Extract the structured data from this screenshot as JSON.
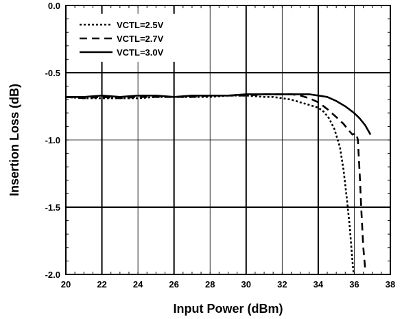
{
  "chart_data": {
    "type": "line",
    "title": "",
    "xlabel": "Input Power  (dBm)",
    "ylabel": "Insertion Loss  (dB)",
    "xlim": [
      20,
      38
    ],
    "ylim": [
      -2.0,
      0.0
    ],
    "xticks": [
      20,
      22,
      24,
      26,
      28,
      30,
      32,
      34,
      36,
      38
    ],
    "xtick_labels": [
      "20",
      "22",
      "24",
      "26",
      "28",
      "30",
      "32",
      "34",
      "36",
      "38"
    ],
    "yticks": [
      0.0,
      -0.5,
      -1.0,
      -1.5,
      -2.0
    ],
    "ytick_labels": [
      "0.0",
      "-0.5",
      "-1.0",
      "-1.5",
      "-2.0"
    ],
    "grid": true,
    "legend_position": "top-left",
    "series": [
      {
        "name": "VCTL=2.5V",
        "style": "dotted",
        "x": [
          20,
          21,
          22,
          23,
          24,
          25,
          26,
          27,
          28,
          29,
          30,
          31,
          31.5,
          32,
          32.5,
          33,
          33.5,
          34,
          34.3,
          34.6,
          34.9,
          35.2,
          35.4,
          35.6,
          35.75,
          35.85,
          35.92,
          35.97
        ],
        "y": [
          -0.68,
          -0.69,
          -0.69,
          -0.69,
          -0.69,
          -0.68,
          -0.68,
          -0.68,
          -0.68,
          -0.67,
          -0.67,
          -0.68,
          -0.68,
          -0.69,
          -0.7,
          -0.72,
          -0.74,
          -0.76,
          -0.79,
          -0.84,
          -0.92,
          -1.05,
          -1.22,
          -1.45,
          -1.65,
          -1.82,
          -1.93,
          -2.0
        ]
      },
      {
        "name": "VCTL=2.7V",
        "style": "dashed",
        "x": [
          20,
          21,
          22,
          23,
          24,
          25,
          26,
          27,
          28,
          29,
          30,
          31,
          32,
          32.5,
          33,
          33.5,
          34,
          34.5,
          35,
          35.4,
          35.7,
          35.9,
          36.1,
          36.2,
          36.3,
          36.4,
          36.5,
          36.6
        ],
        "y": [
          -0.68,
          -0.69,
          -0.68,
          -0.69,
          -0.68,
          -0.68,
          -0.68,
          -0.68,
          -0.67,
          -0.67,
          -0.67,
          -0.66,
          -0.66,
          -0.66,
          -0.67,
          -0.69,
          -0.72,
          -0.77,
          -0.83,
          -0.88,
          -0.93,
          -0.96,
          -0.95,
          -1.0,
          -1.25,
          -1.55,
          -1.8,
          -1.95
        ]
      },
      {
        "name": "VCTL=3.0V",
        "style": "solid",
        "x": [
          20,
          21,
          22,
          23,
          24,
          25,
          26,
          27,
          28,
          29,
          30,
          31,
          32,
          32.5,
          33,
          33.5,
          34,
          34.5,
          35,
          35.5,
          36,
          36.3,
          36.6,
          36.9
        ],
        "y": [
          -0.68,
          -0.68,
          -0.67,
          -0.68,
          -0.67,
          -0.67,
          -0.68,
          -0.67,
          -0.67,
          -0.67,
          -0.66,
          -0.66,
          -0.66,
          -0.66,
          -0.66,
          -0.66,
          -0.67,
          -0.68,
          -0.71,
          -0.75,
          -0.8,
          -0.84,
          -0.89,
          -0.96
        ]
      }
    ]
  }
}
